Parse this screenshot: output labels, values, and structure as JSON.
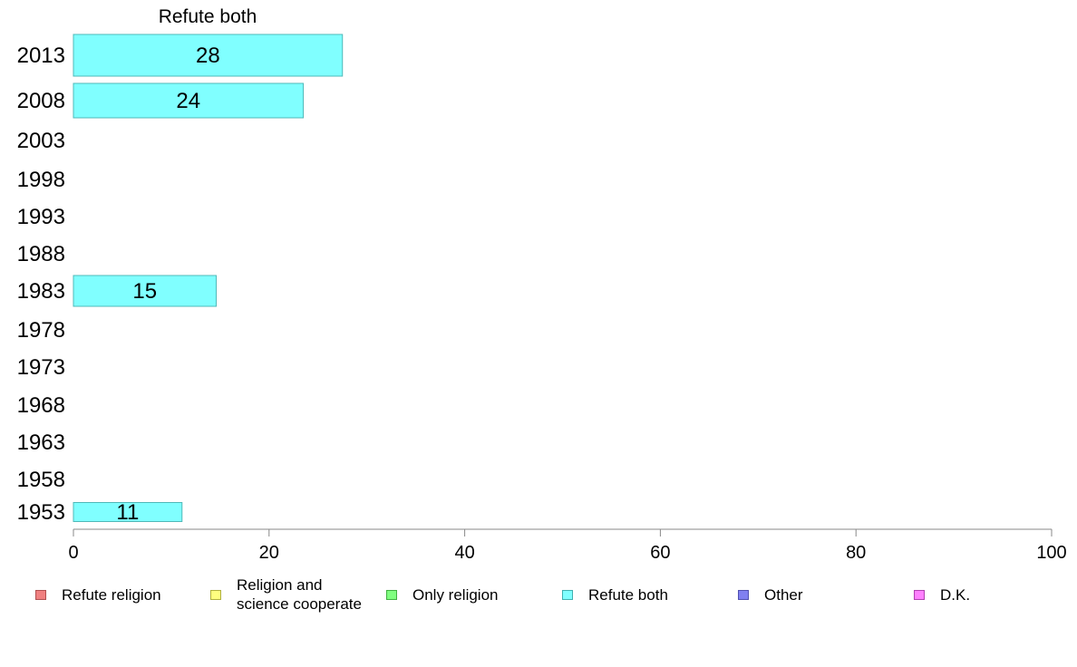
{
  "chart_data": {
    "type": "bar",
    "orientation": "horizontal",
    "title": "Refute both",
    "categories": [
      "2013",
      "2008",
      "2003",
      "1998",
      "1993",
      "1988",
      "1983",
      "1978",
      "1973",
      "1968",
      "1963",
      "1958",
      "1953"
    ],
    "series": [
      {
        "name": "Refute both",
        "values": [
          28,
          24,
          null,
          null,
          null,
          null,
          15,
          null,
          null,
          null,
          null,
          null,
          11
        ],
        "display_values": [
          27.5,
          23.5,
          null,
          null,
          null,
          null,
          14.6,
          null,
          null,
          null,
          null,
          null,
          11.1
        ],
        "color": "#80FFFF",
        "border": "#4FB8B8"
      }
    ],
    "xlim": [
      0,
      100
    ],
    "xticks": [
      "0",
      "20",
      "40",
      "60",
      "80",
      "100"
    ],
    "grid": false,
    "legend_position": "bottom",
    "legend": [
      {
        "label": "Refute religion",
        "color": "#F08080",
        "border": "#B05050"
      },
      {
        "label": "Religion and\nscience cooperate",
        "color": "#FFFF80",
        "border": "#B0B040"
      },
      {
        "label": "Only religion",
        "color": "#80FF80",
        "border": "#40B040"
      },
      {
        "label": "Refute both",
        "color": "#80FFFF",
        "border": "#40B0B0"
      },
      {
        "label": "Other",
        "color": "#8080F0",
        "border": "#5050B0"
      },
      {
        "label": "D.K.",
        "color": "#FF80FF",
        "border": "#B040B0"
      }
    ]
  }
}
